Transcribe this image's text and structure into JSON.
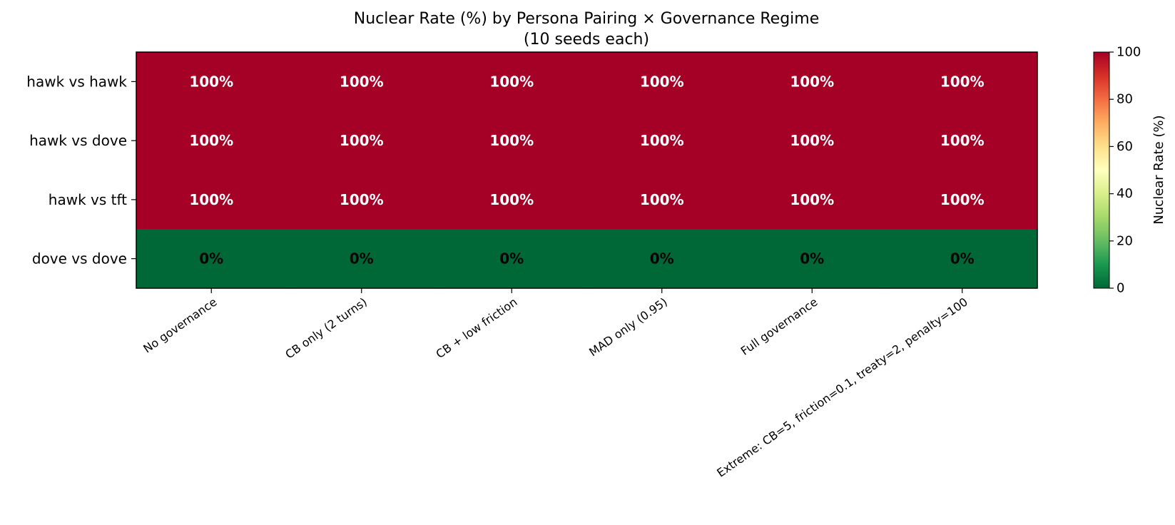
{
  "chart_data": {
    "type": "heatmap",
    "title": "Nuclear Rate (%) by Persona Pairing × Governance Regime",
    "subtitle": "(10 seeds each)",
    "rows": [
      "hawk vs hawk",
      "hawk vs dove",
      "hawk vs tft",
      "dove vs dove"
    ],
    "columns": [
      "No governance",
      "CB only (2 turns)",
      "CB + low friction",
      "MAD only (0.95)",
      "Full governance",
      "Extreme: CB=5, friction=0.1, treaty=2, penalty=100"
    ],
    "values": [
      [
        100,
        100,
        100,
        100,
        100,
        100
      ],
      [
        100,
        100,
        100,
        100,
        100,
        100
      ],
      [
        100,
        100,
        100,
        100,
        100,
        100
      ],
      [
        0,
        0,
        0,
        0,
        0,
        0
      ]
    ],
    "cell_label_suffix": "%",
    "colorbar": {
      "label": "Nuclear Rate (%)",
      "range": [
        0,
        100
      ],
      "ticks": [
        0,
        20,
        40,
        60,
        80,
        100
      ],
      "colormap": "RdYlGn_r"
    },
    "colors": {
      "high": "#a50026",
      "low": "#006837",
      "text_on_high": "#ffffff",
      "text_on_low": "#000000"
    }
  }
}
